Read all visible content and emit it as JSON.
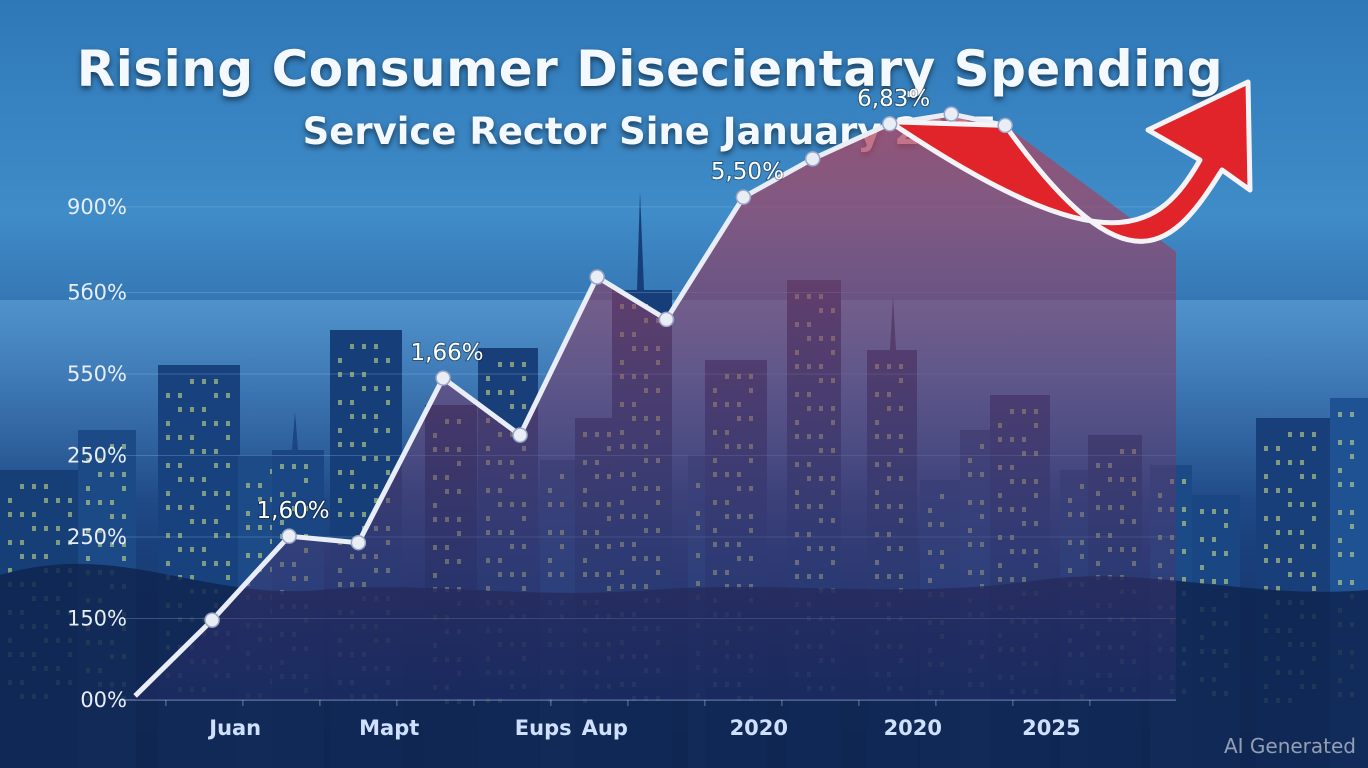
{
  "title": "Rising Consumer Disecientary Spending",
  "subtitle": "Service Rector Sine January 2025",
  "watermark": "AI Generated",
  "colors": {
    "line": "#e9edf6",
    "arrow": "#e0242a",
    "area": "#b5455f",
    "grid": "#9fc3ea"
  },
  "chart_data": {
    "type": "line",
    "title": "Rising Consumer Disecientary Spending",
    "subtitle": "Service Rector Sine January 2025",
    "y_ticks": [
      "00%",
      "150%",
      "250%",
      "250%",
      "550%",
      "5б0%",
      "900%"
    ],
    "x_ticks": [
      "Juan",
      "Mapt",
      "Eups",
      "Aup",
      "2020",
      "2020",
      "2025"
    ],
    "x_tick_positions": [
      1.6,
      3.6,
      5.6,
      6.4,
      8.4,
      10.4,
      12.2
    ],
    "grid": true,
    "y_index_range": [
      0,
      6
    ],
    "series": [
      {
        "values": [
          0.05,
          0.98,
          2.01,
          1.93,
          3.95,
          3.25,
          5.19,
          4.67,
          6.17,
          6.64,
          7.07,
          7.19,
          7.05
        ],
        "x": [
          0.3,
          1.3,
          2.3,
          3.2,
          4.3,
          5.3,
          6.3,
          7.2,
          8.2,
          9.1,
          10.1,
          10.9,
          11.6
        ]
      }
    ],
    "annotations": [
      {
        "text": "1,60%",
        "point_index": 2
      },
      {
        "text": "1,66%",
        "point_index": 4
      },
      {
        "text": "5,50%",
        "point_index": 8
      },
      {
        "text": "6,83%",
        "point_index": 10
      }
    ],
    "trend_arrow": "up-right"
  }
}
